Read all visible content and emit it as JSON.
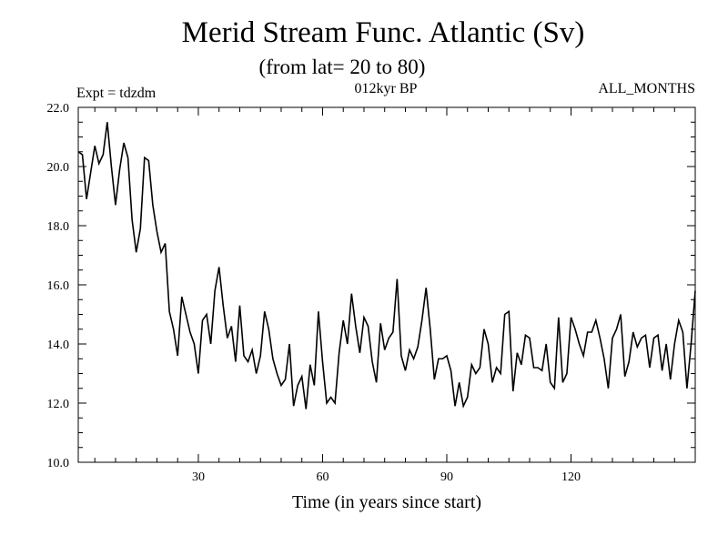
{
  "chart_data": {
    "type": "line",
    "title": "Merid Stream Func. Atlantic (Sv)",
    "subtitle": "(from lat= 20 to 80)",
    "annotation_left": "Expt = tdzdm",
    "annotation_center": "012kyr BP",
    "annotation_right": "ALL_MONTHS",
    "xlabel": "Time (in years since start)",
    "ylabel": "",
    "xlim": [
      1,
      150
    ],
    "ylim": [
      10.0,
      22.0
    ],
    "x_ticks": [
      30,
      60,
      90,
      120
    ],
    "x_tick_labels": [
      "30",
      "60",
      "90",
      "120"
    ],
    "y_ticks": [
      10,
      12,
      14,
      16,
      18,
      20,
      22
    ],
    "y_tick_labels": [
      "10.0",
      "12.0",
      "14.0",
      "16.0",
      "18.0",
      "20.0",
      "22.0"
    ],
    "grid": false,
    "line_color": "#000000",
    "series": [
      {
        "name": "Merid Stream Func. Atlantic",
        "x_start": 1,
        "x_step": 1,
        "values": [
          20.5,
          20.4,
          18.9,
          19.8,
          20.7,
          20.1,
          20.4,
          21.5,
          20.0,
          18.7,
          19.9,
          20.8,
          20.3,
          18.2,
          17.1,
          17.9,
          20.3,
          20.2,
          18.7,
          17.8,
          17.1,
          17.4,
          15.1,
          14.5,
          13.6,
          15.6,
          15.0,
          14.4,
          14.0,
          13.0,
          14.8,
          15.0,
          14.0,
          15.8,
          16.6,
          15.3,
          14.2,
          14.6,
          13.4,
          15.3,
          13.6,
          13.4,
          13.8,
          13.0,
          13.6,
          15.1,
          14.5,
          13.5,
          13.0,
          12.6,
          12.8,
          14.0,
          11.9,
          12.6,
          12.9,
          11.8,
          13.3,
          12.6,
          15.1,
          13.4,
          12.0,
          12.2,
          12.0,
          13.7,
          14.8,
          14.0,
          15.7,
          14.6,
          13.7,
          14.9,
          14.6,
          13.4,
          12.7,
          14.7,
          13.8,
          14.2,
          14.4,
          16.2,
          13.6,
          13.1,
          13.8,
          13.5,
          13.9,
          14.8,
          15.9,
          14.5,
          12.8,
          13.5,
          13.5,
          13.6,
          13.1,
          11.9,
          12.7,
          11.9,
          12.2,
          13.3,
          13.0,
          13.2,
          14.5,
          14.0,
          12.7,
          13.2,
          13.0,
          15.0,
          15.1,
          12.4,
          13.7,
          13.3,
          14.3,
          14.2,
          13.2,
          13.2,
          13.1,
          14.0,
          12.7,
          12.5,
          14.9,
          12.7,
          13.0,
          14.9,
          14.5,
          14.0,
          13.6,
          14.4,
          14.4,
          14.8,
          14.2,
          13.5,
          12.5,
          14.2,
          14.5,
          15.0,
          12.9,
          13.4,
          14.4,
          13.9,
          14.2,
          14.3,
          13.2,
          14.2,
          14.3,
          13.1,
          14.0,
          12.8,
          14.0,
          14.8,
          14.4,
          12.5,
          14.0,
          15.8
        ]
      }
    ]
  }
}
